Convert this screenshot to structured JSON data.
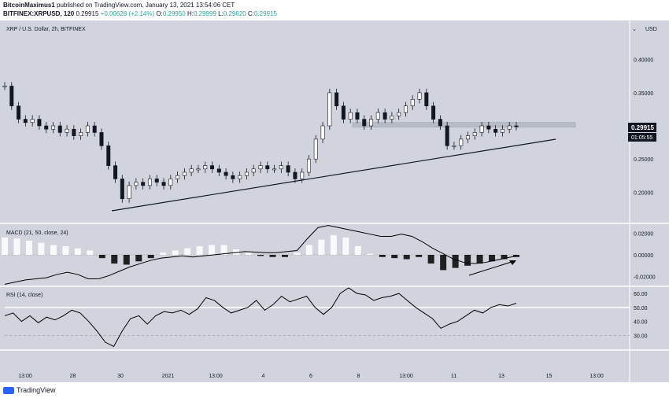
{
  "header": {
    "author": "BitcoinMaximus1",
    "published_prefix": " published on TradingView.com, January 13, 2021 13:54:06 CET",
    "symbol": "BITFINEX:XRPUSD, 120",
    "last": "0.29915",
    "change": "+0.00628 (+2.14%)",
    "open_label": "O:",
    "open": "0.29950",
    "high_label": "H:",
    "high": "0.29999",
    "low_label": "L:",
    "low": "0.29620",
    "close_label": "C:",
    "close": "0.29915"
  },
  "footer": {
    "brand": "TradingView"
  },
  "colors": {
    "background": "#d1d4dc",
    "candle": "#131722",
    "price_tag": "#131722",
    "macd_hist_positive": "#ffffff",
    "macd_hist_negative": "#000000",
    "rsi_line": "#000000",
    "panel_divider": "#ffffff"
  },
  "chart_data": [
    {
      "type": "line",
      "title": "XRP / U.S. Dollar, 2h, BITFINEX",
      "ylabel": "USD",
      "currency_label": "USD",
      "ylim": [
        0.16,
        0.44
      ],
      "y_ticks": [
        "0.40000",
        "0.35000",
        "0.30000",
        "0.25000",
        "0.20000"
      ],
      "x_ticks": [
        "13:00",
        "28",
        "30",
        "2021",
        "13:00",
        "4",
        "6",
        "8",
        "13:00",
        "11",
        "13",
        "15",
        "13:00"
      ],
      "last_price": "0.29915",
      "countdown": "01:05:55",
      "series": [
        {
          "values": [
            0.36,
            0.33,
            0.31,
            0.305,
            0.31,
            0.3,
            0.295,
            0.3,
            0.29,
            0.295,
            0.285,
            0.29,
            0.3,
            0.29,
            0.27,
            0.24,
            0.22,
            0.19,
            0.21,
            0.215,
            0.21,
            0.22,
            0.215,
            0.21,
            0.22,
            0.225,
            0.23,
            0.235,
            0.235,
            0.24,
            0.235,
            0.23,
            0.225,
            0.22,
            0.225,
            0.23,
            0.235,
            0.24,
            0.235,
            0.235,
            0.24,
            0.23,
            0.22,
            0.23,
            0.25,
            0.28,
            0.3,
            0.35,
            0.33,
            0.31,
            0.32,
            0.31,
            0.3,
            0.31,
            0.32,
            0.31,
            0.315,
            0.32,
            0.33,
            0.34,
            0.35,
            0.33,
            0.31,
            0.3,
            0.27,
            0.27,
            0.28,
            0.285,
            0.29,
            0.3,
            0.295,
            0.29,
            0.295,
            0.3,
            0.29915
          ]
        }
      ],
      "annotations": [
        "ascending support trendline",
        "horizontal resistance zone"
      ]
    },
    {
      "type": "line",
      "title": "MACD (21, 50, close, 24)",
      "ylim": [
        -0.026,
        0.026
      ],
      "y_ticks": [
        "0.02000",
        "0.00000",
        "-0.02000"
      ],
      "series": [
        {
          "name": "MACD",
          "values": [
            -0.027,
            -0.025,
            -0.023,
            -0.022,
            -0.021,
            -0.018,
            -0.016,
            -0.018,
            -0.022,
            -0.022,
            -0.019,
            -0.015,
            -0.011,
            -0.008,
            -0.005,
            -0.003,
            -0.002,
            -0.001,
            -0.002,
            -0.001,
            0.0,
            0.001,
            0.002,
            0.003,
            0.0025,
            0.002,
            0.002,
            0.003,
            0.004,
            0.015,
            0.025,
            0.027,
            0.025,
            0.023,
            0.021,
            0.019,
            0.017,
            0.017,
            0.019,
            0.017,
            0.012,
            0.006,
            0.001,
            -0.004,
            -0.007,
            -0.008,
            -0.007,
            -0.005,
            -0.003,
            -0.001
          ]
        },
        {
          "name": "Histogram",
          "values": [
            0.016,
            0.015,
            0.013,
            0.011,
            0.009,
            0.008,
            0.006,
            0.004,
            -0.003,
            -0.008,
            -0.009,
            -0.006,
            -0.003,
            0.002,
            0.004,
            0.006,
            0.008,
            0.009,
            0.009,
            0.005,
            0.002,
            -0.001,
            -0.002,
            -0.002,
            0.002,
            0.009,
            0.014,
            0.018,
            0.016,
            0.008,
            0.001,
            -0.002,
            -0.003,
            -0.004,
            -0.002,
            -0.008,
            -0.014,
            -0.012,
            -0.01,
            -0.008,
            -0.006,
            -0.004,
            -0.002
          ]
        }
      ],
      "annotations": [
        "bullish divergence arrow"
      ]
    },
    {
      "type": "line",
      "title": "RSI (14, close)",
      "ylim": [
        20,
        64
      ],
      "y_ticks": [
        "60.00",
        "50.00",
        "40.00",
        "30.00"
      ],
      "series": [
        {
          "name": "RSI",
          "values": [
            44,
            46,
            40,
            44,
            39,
            43,
            41,
            44,
            48,
            46,
            40,
            33,
            25,
            22,
            33,
            42,
            44,
            38,
            44,
            47,
            46,
            48,
            45,
            49,
            57,
            55,
            50,
            46,
            48,
            50,
            55,
            48,
            52,
            58,
            54,
            56,
            58,
            50,
            45,
            50,
            60,
            64,
            60,
            59,
            55,
            57,
            58,
            60,
            55,
            50,
            46,
            42,
            35,
            38,
            40,
            44,
            48,
            46,
            50,
            52,
            51,
            53
          ]
        }
      ]
    }
  ]
}
